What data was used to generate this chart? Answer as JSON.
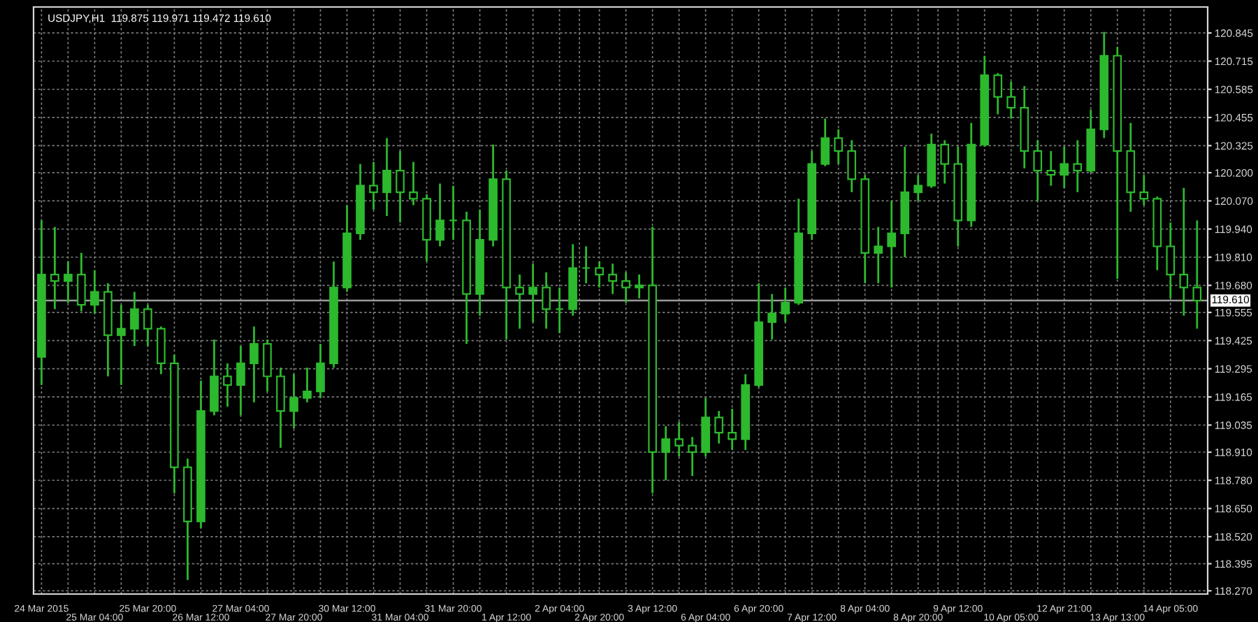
{
  "chart_data": {
    "type": "candlestick",
    "title": "USDJPY,H1  119.875 119.971 119.472 119.610",
    "categories": [
      "24 Mar 2015",
      null,
      null,
      null,
      "25 Mar 04:00",
      null,
      null,
      null,
      "25 Mar 20:00",
      null,
      null,
      null,
      "26 Mar 12:00",
      null,
      null,
      "27 Mar 04:00",
      null,
      null,
      null,
      "27 Mar 20:00",
      null,
      null,
      null,
      "30 Mar 12:00",
      null,
      null,
      null,
      "31 Mar 04:00",
      null,
      null,
      null,
      "31 Mar 20:00",
      null,
      null,
      null,
      "1 Apr 12:00",
      null,
      null,
      null,
      "2 Apr 04:00",
      null,
      null,
      "2 Apr 20:00",
      null,
      null,
      null,
      "3 Apr 12:00",
      null,
      null,
      null,
      "6 Apr 04:00",
      null,
      null,
      null,
      "6 Apr 20:00",
      null,
      null,
      null,
      "7 Apr 12:00",
      null,
      null,
      null,
      "8 Apr 04:00",
      null,
      null,
      null,
      "8 Apr 20:00",
      null,
      null,
      "9 Apr 12:00",
      null,
      null,
      null,
      "10 Apr 05:00",
      null,
      null,
      null,
      "12 Apr 21:00",
      null,
      null,
      null,
      "13 Apr 13:00",
      null,
      null,
      null,
      "14 Apr 05:00",
      null,
      null
    ],
    "series": [
      {
        "color": "#2db92d",
        "ohlc": [
          [
            119.35,
            119.98,
            119.22,
            119.73
          ],
          [
            119.73,
            119.95,
            119.57,
            119.7
          ],
          [
            119.7,
            119.79,
            119.6,
            119.73
          ],
          [
            119.73,
            119.83,
            119.56,
            119.59
          ],
          [
            119.59,
            119.75,
            119.55,
            119.65
          ],
          [
            119.65,
            119.69,
            119.26,
            119.45
          ],
          [
            119.45,
            119.59,
            119.22,
            119.48
          ],
          [
            119.48,
            119.65,
            119.4,
            119.57
          ],
          [
            119.57,
            119.59,
            119.4,
            119.48
          ],
          [
            119.48,
            119.49,
            119.27,
            119.32
          ],
          [
            119.32,
            119.36,
            118.72,
            118.84
          ],
          [
            118.84,
            118.88,
            118.32,
            118.59
          ],
          [
            118.59,
            119.24,
            118.56,
            119.1
          ],
          [
            119.1,
            119.43,
            119.08,
            119.26
          ],
          [
            119.26,
            119.32,
            119.12,
            119.22
          ],
          [
            119.22,
            119.4,
            119.08,
            119.32
          ],
          [
            119.32,
            119.49,
            119.14,
            119.41
          ],
          [
            119.41,
            119.43,
            119.19,
            119.26
          ],
          [
            119.26,
            119.3,
            118.93,
            119.1
          ],
          [
            119.1,
            119.27,
            119.02,
            119.16
          ],
          [
            119.16,
            119.3,
            119.14,
            119.19
          ],
          [
            119.19,
            119.41,
            119.16,
            119.32
          ],
          [
            119.32,
            119.79,
            119.3,
            119.67
          ],
          [
            119.67,
            120.05,
            119.65,
            119.92
          ],
          [
            119.92,
            120.24,
            119.89,
            120.14
          ],
          [
            120.14,
            120.25,
            120.03,
            120.11
          ],
          [
            120.11,
            120.36,
            120.0,
            120.21
          ],
          [
            120.21,
            120.3,
            119.97,
            120.11
          ],
          [
            120.11,
            120.25,
            120.05,
            120.08
          ],
          [
            120.08,
            120.1,
            119.79,
            119.89
          ],
          [
            119.89,
            120.15,
            119.86,
            119.98
          ],
          [
            119.98,
            120.14,
            119.89,
            119.98
          ],
          [
            119.98,
            120.02,
            119.41,
            119.64
          ],
          [
            119.64,
            120.03,
            119.54,
            119.89
          ],
          [
            119.89,
            120.33,
            119.86,
            120.17
          ],
          [
            120.17,
            120.21,
            119.43,
            119.67
          ],
          [
            119.67,
            119.73,
            119.48,
            119.64
          ],
          [
            119.64,
            119.78,
            119.51,
            119.67
          ],
          [
            119.67,
            119.74,
            119.48,
            119.57
          ],
          [
            119.57,
            119.67,
            119.46,
            119.57
          ],
          [
            119.57,
            119.87,
            119.54,
            119.76
          ],
          [
            119.76,
            119.86,
            119.69,
            119.76
          ],
          [
            119.76,
            119.79,
            119.67,
            119.73
          ],
          [
            119.73,
            119.78,
            119.64,
            119.7
          ],
          [
            119.7,
            119.74,
            119.6,
            119.67
          ],
          [
            119.67,
            119.73,
            119.62,
            119.68
          ],
          [
            119.68,
            119.95,
            118.72,
            118.91
          ],
          [
            118.91,
            119.03,
            118.78,
            118.97
          ],
          [
            118.97,
            119.05,
            118.89,
            118.94
          ],
          [
            118.94,
            118.98,
            118.8,
            118.91
          ],
          [
            118.91,
            119.16,
            118.89,
            119.07
          ],
          [
            119.07,
            119.1,
            118.95,
            119.0
          ],
          [
            119.0,
            119.11,
            118.92,
            118.97
          ],
          [
            118.97,
            119.27,
            118.92,
            119.22
          ],
          [
            119.22,
            119.69,
            119.21,
            119.51
          ],
          [
            119.51,
            119.64,
            119.43,
            119.55
          ],
          [
            119.55,
            119.67,
            119.51,
            119.6
          ],
          [
            119.6,
            120.08,
            119.59,
            119.92
          ],
          [
            119.92,
            120.3,
            119.89,
            120.24
          ],
          [
            120.24,
            120.45,
            120.23,
            120.36
          ],
          [
            120.36,
            120.4,
            120.24,
            120.3
          ],
          [
            120.3,
            120.35,
            120.11,
            120.17
          ],
          [
            120.17,
            120.19,
            119.69,
            119.83
          ],
          [
            119.83,
            119.95,
            119.69,
            119.86
          ],
          [
            119.86,
            120.07,
            119.67,
            119.92
          ],
          [
            119.92,
            120.32,
            119.81,
            120.11
          ],
          [
            120.11,
            120.19,
            120.07,
            120.14
          ],
          [
            120.14,
            120.38,
            120.13,
            120.33
          ],
          [
            120.33,
            120.35,
            120.15,
            120.24
          ],
          [
            120.24,
            120.32,
            119.86,
            119.98
          ],
          [
            119.98,
            120.43,
            119.95,
            120.33
          ],
          [
            120.33,
            120.74,
            120.32,
            120.65
          ],
          [
            120.65,
            120.66,
            120.47,
            120.55
          ],
          [
            120.55,
            120.62,
            120.45,
            120.5
          ],
          [
            120.5,
            120.6,
            120.22,
            120.3
          ],
          [
            120.3,
            120.35,
            120.07,
            120.21
          ],
          [
            120.21,
            120.3,
            120.14,
            120.19
          ],
          [
            120.19,
            120.32,
            120.13,
            120.24
          ],
          [
            120.24,
            120.35,
            120.11,
            120.21
          ],
          [
            120.21,
            120.49,
            120.2,
            120.4
          ],
          [
            120.4,
            120.85,
            120.36,
            120.74
          ],
          [
            120.74,
            120.78,
            119.71,
            120.3
          ],
          [
            120.3,
            120.43,
            120.02,
            120.11
          ],
          [
            120.11,
            120.19,
            120.05,
            120.08
          ],
          [
            120.08,
            120.09,
            119.75,
            119.86
          ],
          [
            119.86,
            119.97,
            119.62,
            119.73
          ],
          [
            119.73,
            120.13,
            119.54,
            119.67
          ],
          [
            119.67,
            119.98,
            119.48,
            119.61
          ]
        ]
      }
    ],
    "ylim": [
      118.255,
      120.965
    ],
    "yticks": [
      120.845,
      120.715,
      120.585,
      120.455,
      120.325,
      {
        "value": 120.2,
        "label": "120.200"
      },
      {
        "value": 120.07,
        "label": "120.070"
      },
      {
        "value": 119.94,
        "label": "119.940"
      },
      {
        "value": 119.81,
        "label": "119.810"
      },
      {
        "value": 119.68,
        "label": "119.680"
      },
      119.555,
      119.425,
      119.295,
      119.165,
      119.035,
      {
        "value": 118.91,
        "label": "118.910"
      },
      {
        "value": 118.78,
        "label": "118.780"
      },
      {
        "value": 118.65,
        "label": "118.650"
      },
      {
        "value": 118.52,
        "label": "118.520"
      },
      118.395,
      {
        "value": 118.27,
        "label": "118.270"
      }
    ],
    "ref_lines": [
      {
        "axis": "y",
        "value": 119.61,
        "label": "119.610",
        "color": "#9a9a9a"
      }
    ],
    "grid": true
  }
}
